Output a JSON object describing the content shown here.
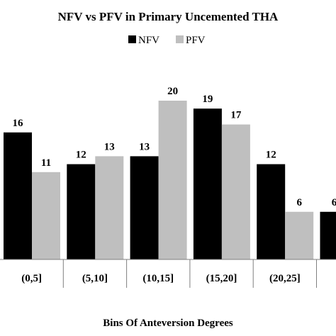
{
  "chart_data": {
    "type": "bar",
    "title": "NFV vs PFV in Primary Uncemented THA",
    "xlabel": "Bins Of Anteversion Degrees",
    "ylabel": "",
    "categories": [
      "(0,5]",
      "(5,10]",
      "(10,15]",
      "(15,20]",
      "(20,25]",
      "(2"
    ],
    "series": [
      {
        "name": "NFV",
        "values": [
          16,
          12,
          13,
          19,
          12,
          6
        ],
        "color": "#000000"
      },
      {
        "name": "PFV",
        "values": [
          11,
          13,
          20,
          17,
          6,
          null
        ],
        "color": "#bfbfbf"
      }
    ],
    "ylim": [
      0,
      21.5
    ],
    "grid": false,
    "legend": "top-center",
    "value_labels": [
      [
        "16",
        "12",
        "13",
        "19",
        "12",
        "6"
      ],
      [
        "11",
        "13",
        "20",
        "17",
        "6",
        ""
      ]
    ]
  }
}
